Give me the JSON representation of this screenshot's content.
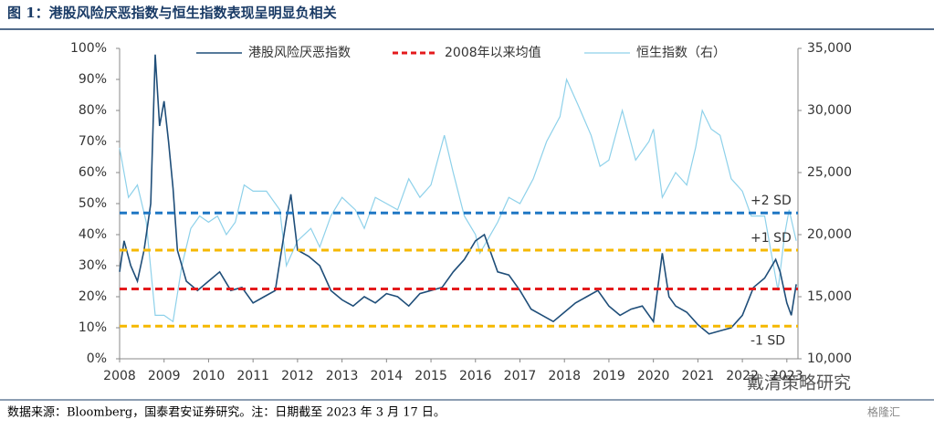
{
  "chart_data": {
    "type": "line",
    "title": "图 1：港股风险厌恶指数与恒生指数表现呈明显负相关",
    "source": "数据来源：Bloomberg，国泰君安证券研究。注：日期截至 2023 年 3 月 17 日。",
    "watermarks": [
      "戴清策略研究",
      "格隆汇"
    ],
    "xlim": [
      2008,
      2023.25
    ],
    "xticks": [
      2008,
      2009,
      2010,
      2011,
      2012,
      2013,
      2014,
      2015,
      2016,
      2017,
      2018,
      2019,
      2020,
      2021,
      2022,
      2023
    ],
    "ylim": [
      0,
      100
    ],
    "yticks": [
      {
        "value": 0,
        "label": "0%"
      },
      {
        "value": 10,
        "label": "10%"
      },
      {
        "value": 20,
        "label": "20%"
      },
      {
        "value": 30,
        "label": "30%"
      },
      {
        "value": 40,
        "label": "40%"
      },
      {
        "value": 50,
        "label": "50%"
      },
      {
        "value": 60,
        "label": "60%"
      },
      {
        "value": 70,
        "label": "70%"
      },
      {
        "value": 80,
        "label": "80%"
      },
      {
        "value": 90,
        "label": "90%"
      },
      {
        "value": 100,
        "label": "100%"
      }
    ],
    "y2lim": [
      10000,
      35000
    ],
    "y2ticks": [
      {
        "value": 10000,
        "label": "10,000"
      },
      {
        "value": 15000,
        "label": "15,000"
      },
      {
        "value": 20000,
        "label": "20,000"
      },
      {
        "value": 25000,
        "label": "25,000"
      },
      {
        "value": 30000,
        "label": "30,000"
      },
      {
        "value": 35000,
        "label": "35,000"
      }
    ],
    "series": [
      {
        "name": "港股风险厌恶指数",
        "color": "#1f4e79",
        "x": [
          2008.0,
          2008.1,
          2008.25,
          2008.4,
          2008.55,
          2008.7,
          2008.8,
          2008.9,
          2009.0,
          2009.1,
          2009.2,
          2009.3,
          2009.5,
          2009.75,
          2010.0,
          2010.25,
          2010.5,
          2010.75,
          2011.0,
          2011.25,
          2011.5,
          2011.75,
          2011.85,
          2012.0,
          2012.25,
          2012.5,
          2012.75,
          2013.0,
          2013.25,
          2013.5,
          2013.75,
          2014.0,
          2014.25,
          2014.5,
          2014.75,
          2015.0,
          2015.25,
          2015.5,
          2015.75,
          2016.0,
          2016.2,
          2016.5,
          2016.75,
          2017.0,
          2017.25,
          2017.5,
          2017.75,
          2018.0,
          2018.25,
          2018.5,
          2018.75,
          2019.0,
          2019.25,
          2019.5,
          2019.75,
          2020.0,
          2020.2,
          2020.35,
          2020.5,
          2020.75,
          2021.0,
          2021.25,
          2021.5,
          2021.75,
          2022.0,
          2022.25,
          2022.5,
          2022.75,
          2022.85,
          2023.0,
          2023.1,
          2023.21
        ],
        "values": [
          28,
          38,
          30,
          25,
          35,
          50,
          98,
          75,
          83,
          70,
          55,
          35,
          25,
          22,
          25,
          28,
          22,
          23,
          18,
          20,
          22,
          45,
          53,
          35,
          33,
          30,
          22,
          19,
          17,
          20,
          18,
          21,
          20,
          17,
          21,
          22,
          23,
          28,
          32,
          38,
          40,
          28,
          27,
          22,
          16,
          14,
          12,
          15,
          18,
          20,
          22,
          17,
          14,
          16,
          17,
          12,
          34,
          20,
          17,
          15,
          11,
          8,
          9,
          10,
          14,
          23,
          26,
          32,
          28,
          18,
          14,
          24
        ]
      },
      {
        "name": "恒生指数（右）",
        "color": "#8ed1ea",
        "axis": "y2",
        "x": [
          2008.0,
          2008.2,
          2008.4,
          2008.6,
          2008.8,
          2009.0,
          2009.2,
          2009.4,
          2009.6,
          2009.8,
          2010.0,
          2010.2,
          2010.4,
          2010.6,
          2010.8,
          2011.0,
          2011.3,
          2011.6,
          2011.75,
          2012.0,
          2012.3,
          2012.5,
          2012.75,
          2013.0,
          2013.3,
          2013.5,
          2013.75,
          2014.0,
          2014.25,
          2014.5,
          2014.75,
          2015.0,
          2015.3,
          2015.5,
          2015.75,
          2016.0,
          2016.1,
          2016.5,
          2016.75,
          2017.0,
          2017.3,
          2017.6,
          2017.9,
          2018.05,
          2018.3,
          2018.6,
          2018.8,
          2019.0,
          2019.3,
          2019.6,
          2019.9,
          2020.0,
          2020.2,
          2020.5,
          2020.75,
          2020.95,
          2021.1,
          2021.3,
          2021.5,
          2021.75,
          2022.0,
          2022.2,
          2022.5,
          2022.8,
          2022.95,
          2023.05,
          2023.21
        ],
        "values": [
          27000,
          23000,
          24000,
          21000,
          13500,
          13500,
          13000,
          17500,
          20500,
          21500,
          21000,
          21500,
          20000,
          21000,
          24000,
          23500,
          23500,
          22000,
          17500,
          19500,
          20500,
          19000,
          21500,
          23000,
          22000,
          20500,
          23000,
          22500,
          22000,
          24500,
          23000,
          24000,
          28000,
          25000,
          21500,
          20000,
          18500,
          21000,
          23000,
          22500,
          24500,
          27500,
          29500,
          32500,
          30500,
          28000,
          25500,
          26000,
          30000,
          26000,
          27500,
          28500,
          23000,
          25000,
          24000,
          27000,
          30000,
          28500,
          28000,
          24500,
          23500,
          21500,
          21500,
          15500,
          20000,
          22000,
          19500
        ]
      }
    ],
    "reference_lines": [
      {
        "name": "2008年以来均值",
        "value": 22.5,
        "color": "#e41a1c"
      },
      {
        "label": "+2 SD",
        "value": 47,
        "color": "#1f77c4"
      },
      {
        "label": "+1 SD",
        "value": 35,
        "color": "#f5b800"
      },
      {
        "label": "-1 SD",
        "value": 10.5,
        "color": "#f5b800"
      }
    ]
  }
}
